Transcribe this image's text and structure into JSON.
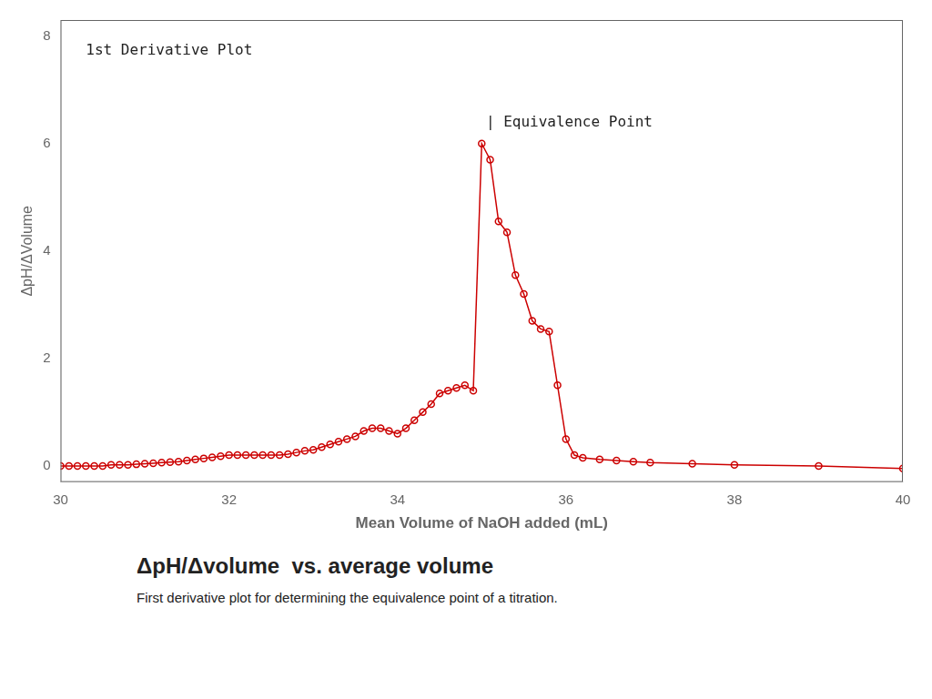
{
  "chart_data": {
    "type": "line",
    "title": "ΔpH/Δvolume  vs. average volume",
    "subtitle": "First derivative plot for determining the equivalence point of a titration.",
    "xlabel": "Mean Volume of NaOH added (mL)",
    "ylabel": "ΔpH/ΔVolume",
    "x": [
      30.0,
      30.1,
      30.2,
      30.3,
      30.4,
      30.5,
      30.6,
      30.7,
      30.8,
      30.9,
      31.0,
      31.1,
      31.2,
      31.3,
      31.4,
      31.5,
      31.6,
      31.7,
      31.8,
      31.9,
      32.0,
      32.1,
      32.2,
      32.3,
      32.4,
      32.5,
      32.6,
      32.7,
      32.8,
      32.9,
      33.0,
      33.1,
      33.2,
      33.3,
      33.4,
      33.5,
      33.6,
      33.7,
      33.8,
      33.9,
      34.0,
      34.1,
      34.2,
      34.3,
      34.4,
      34.5,
      34.6,
      34.7,
      34.8,
      34.9,
      35.0,
      35.1,
      35.2,
      35.3,
      35.4,
      35.5,
      35.6,
      35.7,
      35.8,
      35.9,
      36.0,
      36.1,
      36.2,
      36.4,
      36.6,
      36.8,
      37.0,
      37.5,
      38.0,
      39.0,
      40.0
    ],
    "values": [
      0.0,
      0.0,
      0.0,
      0.0,
      0.0,
      0.0,
      0.02,
      0.02,
      0.02,
      0.03,
      0.04,
      0.05,
      0.06,
      0.07,
      0.08,
      0.1,
      0.12,
      0.14,
      0.16,
      0.18,
      0.2,
      0.2,
      0.2,
      0.2,
      0.2,
      0.2,
      0.2,
      0.22,
      0.25,
      0.28,
      0.3,
      0.35,
      0.4,
      0.45,
      0.5,
      0.55,
      0.65,
      0.7,
      0.7,
      0.65,
      0.6,
      0.7,
      0.85,
      1.0,
      1.15,
      1.35,
      1.4,
      1.45,
      1.5,
      1.4,
      6.0,
      5.7,
      4.55,
      4.35,
      3.55,
      3.2,
      2.7,
      2.55,
      2.5,
      1.5,
      0.5,
      0.2,
      0.15,
      0.12,
      0.1,
      0.08,
      0.06,
      0.04,
      0.02,
      0.0,
      -0.05
    ],
    "color": "#cc0000",
    "marker": "circle",
    "xlim": [
      30,
      40
    ],
    "ylim": [
      -0.3,
      8.3
    ],
    "xticks": [
      30,
      32,
      34,
      36,
      38,
      40
    ],
    "yticks": [
      0,
      2,
      4,
      6,
      8
    ],
    "grid": false,
    "annotations": [
      {
        "text": "1st Derivative Plot"
      },
      {
        "text": "| Equivalence Point",
        "x": 35.05,
        "y": 6.25
      }
    ]
  }
}
